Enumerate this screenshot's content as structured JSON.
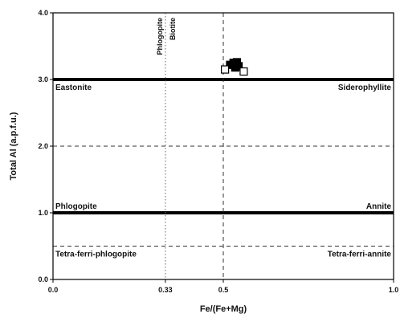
{
  "chart_data": {
    "type": "scatter",
    "title": "",
    "xlabel": "Fe/(Fe+Mg)",
    "ylabel": "Total Al (a.p.f.u.)",
    "xlim": [
      0.0,
      1.0
    ],
    "ylim": [
      0.0,
      4.0
    ],
    "x_ticks": [
      {
        "value": 0.0,
        "label": "0.0"
      },
      {
        "value": 0.33,
        "label": "0.33"
      },
      {
        "value": 0.5,
        "label": "0.5"
      },
      {
        "value": 1.0,
        "label": "1.0"
      }
    ],
    "y_ticks": [
      {
        "value": 0.0,
        "label": "0.0"
      },
      {
        "value": 1.0,
        "label": "1.0"
      },
      {
        "value": 2.0,
        "label": "2.0"
      },
      {
        "value": 3.0,
        "label": "3.0"
      },
      {
        "value": 4.0,
        "label": "4.0"
      }
    ],
    "grid": false,
    "reference_lines": [
      {
        "orientation": "horizontal",
        "value": 3.0,
        "style": "solid-thick"
      },
      {
        "orientation": "horizontal",
        "value": 1.0,
        "style": "solid-thick"
      },
      {
        "orientation": "horizontal",
        "value": 2.0,
        "style": "dashed"
      },
      {
        "orientation": "horizontal",
        "value": 0.5,
        "style": "dashed"
      },
      {
        "orientation": "vertical",
        "value": 0.33,
        "style": "dotted"
      },
      {
        "orientation": "vertical",
        "value": 0.5,
        "style": "dashed"
      }
    ],
    "field_labels": [
      {
        "text": "Eastonite",
        "x": 0.0,
        "y": 3.0,
        "anchor": "start",
        "position": "below"
      },
      {
        "text": "Siderophyllite",
        "x": 1.0,
        "y": 3.0,
        "anchor": "end",
        "position": "below"
      },
      {
        "text": "Phlogopite",
        "x": 0.0,
        "y": 1.0,
        "anchor": "start",
        "position": "above"
      },
      {
        "text": "Annite",
        "x": 1.0,
        "y": 1.0,
        "anchor": "end",
        "position": "above"
      },
      {
        "text": "Tetra-ferri-phlogopite",
        "x": 0.0,
        "y": 0.5,
        "anchor": "start",
        "position": "below"
      },
      {
        "text": "Tetra-ferri-annite",
        "x": 1.0,
        "y": 0.5,
        "anchor": "end",
        "position": "below"
      }
    ],
    "vertical_labels": [
      {
        "text": "Phlogopite",
        "x": 0.33,
        "side": "left"
      },
      {
        "text": "Biotite",
        "x": 0.33,
        "side": "right"
      }
    ],
    "series": [
      {
        "marker": "square-filled",
        "color": "#000000",
        "points": [
          {
            "x": 0.52,
            "y": 3.22
          },
          {
            "x": 0.53,
            "y": 3.25
          },
          {
            "x": 0.54,
            "y": 3.26
          },
          {
            "x": 0.535,
            "y": 3.18
          },
          {
            "x": 0.545,
            "y": 3.2
          }
        ]
      },
      {
        "marker": "square-open",
        "color": "#000000",
        "points": [
          {
            "x": 0.505,
            "y": 3.15
          },
          {
            "x": 0.56,
            "y": 3.12
          }
        ]
      }
    ]
  }
}
